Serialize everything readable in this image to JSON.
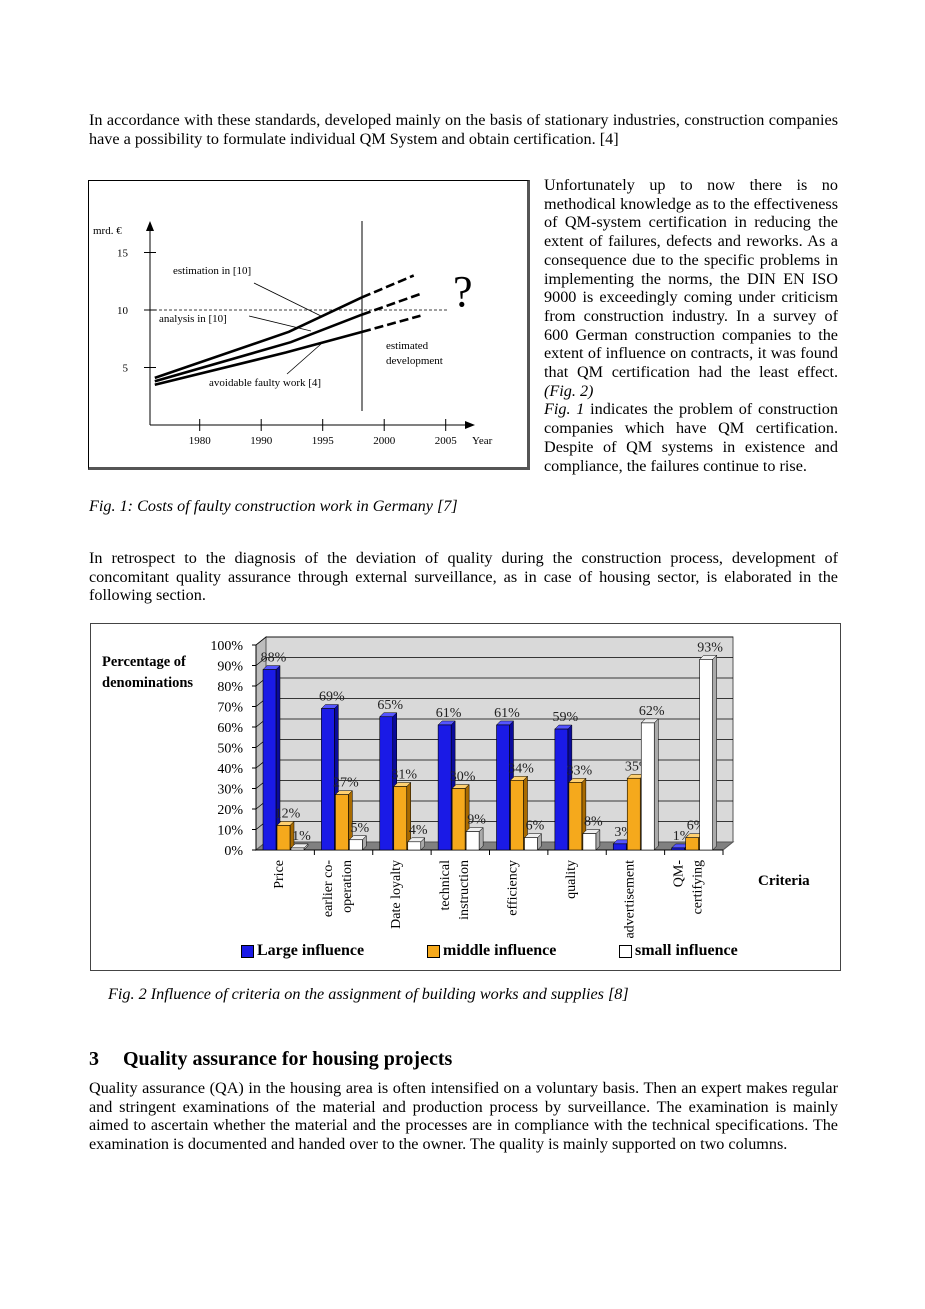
{
  "paragraphs": {
    "intro": "In accordance with these standards, developed mainly on the basis of stationary industries, construction companies have a possibility to formulate individual QM System and obtain certification. [4]",
    "right_column_a": "Unfortunately up to now there is no methodical knowledge as to the effectiveness of QM-system certification in reducing the extent of failures, defects and reworks. As a consequence due to the specific problems in implementing the norms, the DIN EN ISO 9000 is exceedingly coming under criticism from construction industry. In a survey of 600 German construction companies to the extent of influence on contracts, it was found that QM certification had the least effect. ",
    "right_column_a_ref": "(Fig. 2)",
    "right_column_b_ref": "Fig. 1",
    "right_column_b": " indicates the problem of construction companies which have QM certification. Despite of QM systems in existence and compliance, the failures continue to rise.",
    "retrospect": "In retrospect to the diagnosis of the deviation of quality during the construction process, development of concomitant quality assurance through external surveillance, as in case of housing sector, is elaborated in the following section.",
    "section3": "Quality assurance (QA) in the housing area is often intensified on a voluntary basis. Then an expert makes regular and stringent examinations of the material and production process by surveillance. The examination is mainly aimed to ascertain whether the material and the processes are in compliance with the technical specifications. The examination is documented and handed over to the owner. The quality is mainly supported on two columns."
  },
  "captions": {
    "fig1": "Fig.  1:  Costs of faulty construction work in Germany [7]",
    "fig2": "Fig.  2 Influence of criteria on the assignment of building works and supplies [8]"
  },
  "section_heading": {
    "number": "3",
    "title": "Quality assurance for housing projects"
  },
  "chart_data": [
    {
      "type": "line",
      "title": "Costs of faulty construction work in Germany",
      "ylabel": "mrd. €",
      "xlabel": "Year",
      "x_ticks": [
        "1980",
        "1990",
        "1995",
        "2000",
        "2005"
      ],
      "y_ticks": [
        "5",
        "10",
        "15"
      ],
      "ylim": [
        0,
        17
      ],
      "reference_line": 10,
      "question_mark": "?",
      "estimated_label": [
        "estimated",
        "development"
      ],
      "note": "x values are positions along the tick sequence (0 = 1980 tick, 1 = 1990, 2 = 1995, 3 = 2000, 4 = 2005)",
      "series": [
        {
          "name": "estimation in [10]",
          "points": [
            [
              -0.73,
              4.1
            ],
            [
              1.45,
              8.1
            ],
            [
              2.64,
              11.1
            ],
            [
              3.48,
              13.0
            ]
          ]
        },
        {
          "name": "analysis in [10]",
          "points": [
            [
              -0.73,
              3.8
            ],
            [
              1.48,
              7.2
            ],
            [
              2.64,
              9.6
            ],
            [
              3.59,
              11.4
            ]
          ]
        },
        {
          "name": "avoidable faulty work [4]",
          "points": [
            [
              -0.73,
              3.5
            ],
            [
              1.4,
              6.3
            ],
            [
              2.64,
              8.1
            ],
            [
              3.59,
              9.5
            ]
          ]
        }
      ]
    },
    {
      "type": "bar",
      "ylabel": "Percentage of denominations",
      "xlabel": "Criteria",
      "ylim": [
        0,
        100
      ],
      "y_ticks": [
        "0%",
        "10%",
        "20%",
        "30%",
        "40%",
        "50%",
        "60%",
        "70%",
        "80%",
        "90%",
        "100%"
      ],
      "categories": [
        [
          "Price"
        ],
        [
          "earlier co-",
          "operation"
        ],
        [
          "Date loyalty"
        ],
        [
          "technical",
          "instruction"
        ],
        [
          "efficiency"
        ],
        [
          "quality"
        ],
        [
          "advertisement"
        ],
        [
          "QM-",
          "certifying"
        ]
      ],
      "series": [
        {
          "name": "Large influence",
          "color": "#1a1ae6",
          "values": [
            88,
            69,
            65,
            61,
            61,
            59,
            3,
            1
          ]
        },
        {
          "name": "middle influence",
          "color": "#f5a91c",
          "values": [
            12,
            27,
            31,
            30,
            34,
            33,
            35,
            6
          ]
        },
        {
          "name": "small influence",
          "color": "#ffffff",
          "values": [
            1,
            5,
            4,
            9,
            6,
            8,
            62,
            93
          ]
        }
      ]
    }
  ]
}
